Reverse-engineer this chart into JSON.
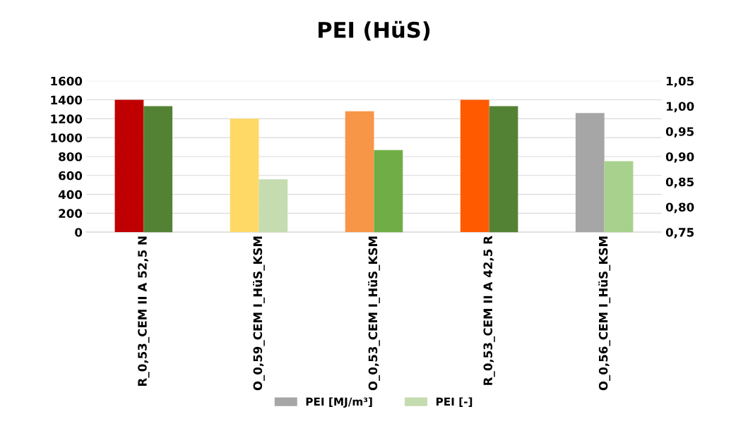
{
  "chart_data": {
    "type": "bar",
    "title": "PEI (HüS)",
    "categories": [
      "R_0,53_CEM II A 52,5 N",
      "O_0,59_CEM I_HüS_KSM",
      "O_0,53_CEM I_HüS_KSM",
      "R_0,53_CEM II A 42,5 R",
      "O_0,56_CEM I_HüS_KSM"
    ],
    "series": [
      {
        "name": "PEI [MJ/m³]",
        "color": "#a6a6a6",
        "colors": [
          "#c00000",
          "#ffd966",
          "#f79646",
          "#ff5a00",
          "#a6a6a6"
        ],
        "values": [
          1400,
          1200,
          1280,
          1400,
          1260
        ]
      },
      {
        "name": "PEI [-]",
        "color": "#c5dbb0",
        "colors": [
          "#548235",
          "#c5dbb0",
          "#70ad47",
          "#548235",
          "#a9d18e"
        ],
        "values": [
          1.0,
          0.855,
          0.913,
          1.0,
          0.891
        ],
        "axis": "y2"
      }
    ],
    "ylim": [
      0,
      1600
    ],
    "yticks": [
      0,
      200,
      400,
      600,
      800,
      1000,
      1200,
      1400,
      1600
    ],
    "y2lim": [
      0.75,
      1.05
    ],
    "y2ticks": [
      {
        "value": 0.75,
        "label": "0,75"
      },
      {
        "value": 0.8,
        "label": "0,80"
      },
      {
        "value": 0.85,
        "label": "0,85"
      },
      {
        "value": 0.9,
        "label": "0,90"
      },
      {
        "value": 0.95,
        "label": "0,95"
      },
      {
        "value": 1.0,
        "label": "1,00"
      },
      {
        "value": 1.05,
        "label": "1,05"
      }
    ],
    "grid": "y",
    "legend": "bottom"
  }
}
